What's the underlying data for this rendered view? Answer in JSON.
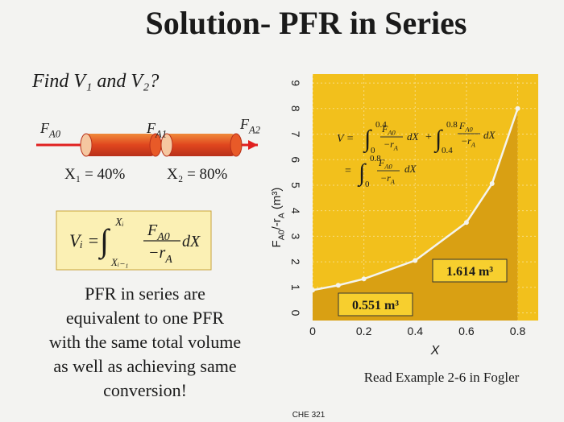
{
  "slide": {
    "title": "Solution- PFR in Series",
    "question": "Find V₁ and V₂?",
    "streams": [
      {
        "f": "F",
        "sub": "A0"
      },
      {
        "f": "F",
        "sub": "A1"
      },
      {
        "f": "F",
        "sub": "A2"
      }
    ],
    "conversions": [
      "X₁ = 40%",
      "X₂ = 80%"
    ],
    "design_eq": {
      "lhs": "Vᵢ =",
      "integral": "∫",
      "upper": "Xᵢ",
      "lower": "Xᵢ₋₁",
      "num": "F",
      "num_sub": "A0",
      "den": "−r",
      "den_sub": "A",
      "dx": "dX"
    },
    "note": [
      "PFR in series are",
      "equivalent to one PFR",
      "with the same total volume",
      "as well as achieving same",
      "conversion!"
    ],
    "reference": "Read Example 2-6 in Fogler",
    "footer": "CHE 321"
  },
  "chart_data": {
    "type": "line",
    "x": [
      0,
      0.1,
      0.2,
      0.4,
      0.6,
      0.7,
      0.8
    ],
    "series": [
      {
        "name": "FA0/-rA",
        "color": "#f4f4ee",
        "values": [
          0.89,
          1.08,
          1.33,
          2.05,
          3.54,
          5.06,
          8.0
        ]
      }
    ],
    "xlim": [
      0,
      0.88
    ],
    "ylim": [
      -0.3,
      9.35
    ],
    "xticks": [
      0,
      0.2,
      0.4,
      0.6,
      0.8
    ],
    "yticks": [
      0,
      1,
      2,
      3,
      4,
      5,
      6,
      7,
      8,
      9
    ],
    "grid": true,
    "xlabel": "X",
    "ylabel": [
      "F",
      "A0",
      "/-r",
      "A",
      " (m³)"
    ],
    "annotations": [
      "0.551 m³",
      "1.614 m³"
    ],
    "equation": {
      "lhs": "V =",
      "integral": "∫",
      "terms": [
        {
          "lower": "0",
          "upper": "0.4"
        },
        {
          "lower": "0.4",
          "upper": "0.8"
        }
      ],
      "plus": "+",
      "eq2": "=",
      "total": {
        "lower": "0",
        "upper": "0.8"
      },
      "num": "F",
      "num_sub": "A0",
      "den": "−r",
      "den_sub": "A",
      "dx": "dX"
    }
  }
}
